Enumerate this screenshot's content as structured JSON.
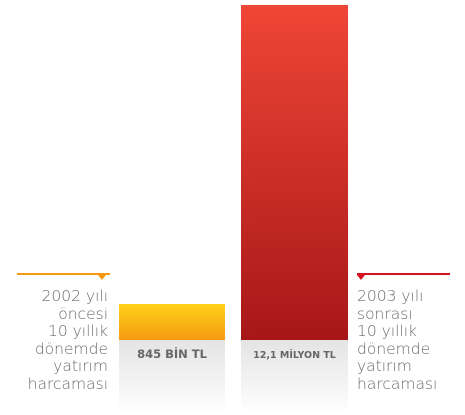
{
  "chart_data": {
    "type": "bar",
    "bars": [
      {
        "value_tl": 845000,
        "label": "845 BİN TL",
        "colors": [
          "#ffd21a",
          "#f59a12"
        ]
      },
      {
        "value_tl": 12100000,
        "label": "12,1 MİLYON TL",
        "colors": [
          "#ef4636",
          "#a71718"
        ]
      }
    ],
    "annotations": [
      {
        "text": "2002 yılı\nöncesi\n10 yıllık\ndönemde\nyatırım\nharcaması",
        "accent": "#f59a12"
      },
      {
        "text": "2003 yılı\nsonrası\n10 yıllık\ndönemde\nyatırım\nharcaması",
        "accent": "#d7131f"
      }
    ],
    "label_band_color": "#e6e6e6",
    "label_text_color": "#666666"
  }
}
